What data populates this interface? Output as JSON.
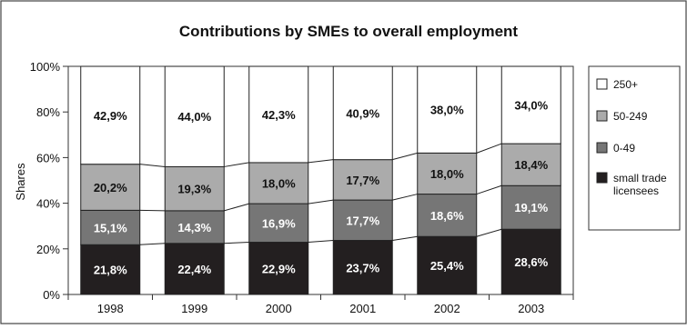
{
  "chart_data": {
    "type": "bar",
    "stacked": true,
    "percent": true,
    "title": "Contributions by SMEs to overall employment",
    "ylabel": "Shares",
    "xlabel": "",
    "ylim": [
      0,
      100
    ],
    "yticks": [
      0,
      20,
      40,
      60,
      80,
      100
    ],
    "ytick_labels": [
      "0%",
      "20%",
      "40%",
      "60%",
      "80%",
      "100%"
    ],
    "categories": [
      "1998",
      "1999",
      "2000",
      "2001",
      "2002",
      "2003"
    ],
    "series": [
      {
        "name": "small trade licensees",
        "color": "#231f20",
        "label_color": "#ffffff",
        "values": [
          21.8,
          22.4,
          22.9,
          23.7,
          25.4,
          28.6
        ],
        "labels": [
          "21,8%",
          "22,4%",
          "22,9%",
          "23,7%",
          "25,4%",
          "28,6%"
        ]
      },
      {
        "name": "0-49",
        "color": "#767676",
        "label_color": "#ffffff",
        "values": [
          15.1,
          14.3,
          16.9,
          17.7,
          18.6,
          19.1
        ],
        "labels": [
          "15,1%",
          "14,3%",
          "16,9%",
          "17,7%",
          "18,6%",
          "19,1%"
        ]
      },
      {
        "name": "50-249",
        "color": "#ababab",
        "label_color": "#111111",
        "values": [
          20.2,
          19.3,
          18.0,
          17.7,
          18.0,
          18.4
        ],
        "labels": [
          "20,2%",
          "19,3%",
          "18,0%",
          "17,7%",
          "18,0%",
          "18,4%"
        ]
      },
      {
        "name": "250+",
        "color": "#ffffff",
        "label_color": "#111111",
        "values": [
          42.9,
          44.0,
          42.3,
          40.9,
          38.0,
          34.0
        ],
        "labels": [
          "42,9%",
          "44,0%",
          "42,3%",
          "40,9%",
          "38,0%",
          "34,0%"
        ]
      }
    ],
    "legend": {
      "placement": "right",
      "entries": [
        "250+",
        "50-249",
        "0-49",
        "small trade licensees"
      ]
    },
    "grid": false,
    "series_lines": true
  }
}
